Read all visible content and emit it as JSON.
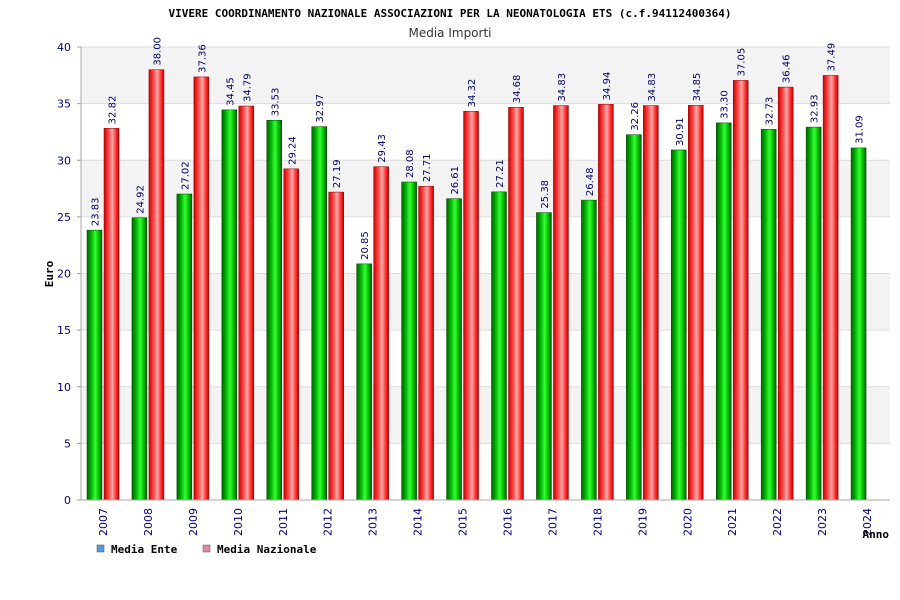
{
  "chart_data": {
    "type": "bar",
    "title": "VIVERE COORDINAMENTO NAZIONALE ASSOCIAZIONI PER LA NEONATOLOGIA ETS (c.f.94112400364)",
    "subtitle": "Media Importi",
    "xlabel": "Anno",
    "ylabel": "Euro",
    "ylim": [
      0,
      40
    ],
    "yticks": [
      0,
      5,
      10,
      15,
      20,
      25,
      30,
      35,
      40
    ],
    "grid": true,
    "legend_position": "bottom-left",
    "categories": [
      "2007",
      "2008",
      "2009",
      "2010",
      "2011",
      "2012",
      "2013",
      "2014",
      "2015",
      "2016",
      "2017",
      "2018",
      "2019",
      "2020",
      "2021",
      "2022",
      "2023",
      "2024"
    ],
    "series": [
      {
        "name": "Media Ente",
        "color": "#00b000",
        "legend_color": "#5599dd",
        "values": [
          23.83,
          24.92,
          27.02,
          34.45,
          33.53,
          32.97,
          20.85,
          28.08,
          26.61,
          27.21,
          25.38,
          26.48,
          32.26,
          30.91,
          33.3,
          32.73,
          32.93,
          31.09
        ],
        "labels": [
          "23.83",
          "24.92",
          "27.02",
          "34.45",
          "33.53",
          "32.97",
          "20.85",
          "28.08",
          "26.61",
          "27.21",
          "25.38",
          "26.48",
          "32.26",
          "30.91",
          "33.30",
          "32.73",
          "32.93",
          "31.09"
        ]
      },
      {
        "name": "Media Nazionale",
        "color": "#ee1111",
        "legend_color": "#dd88aa",
        "values": [
          32.82,
          38.0,
          37.36,
          34.79,
          29.24,
          27.19,
          29.43,
          27.71,
          34.32,
          34.68,
          34.83,
          34.94,
          34.83,
          34.85,
          37.05,
          36.46,
          37.49,
          null
        ],
        "labels": [
          "32.82",
          "38.00",
          "37.36",
          "34.79",
          "29.24",
          "27.19",
          "29.43",
          "27.71",
          "34.32",
          "34.68",
          "34.83",
          "34.94",
          "34.83",
          "34.85",
          "37.05",
          "36.46",
          "37.49",
          null
        ]
      }
    ]
  }
}
